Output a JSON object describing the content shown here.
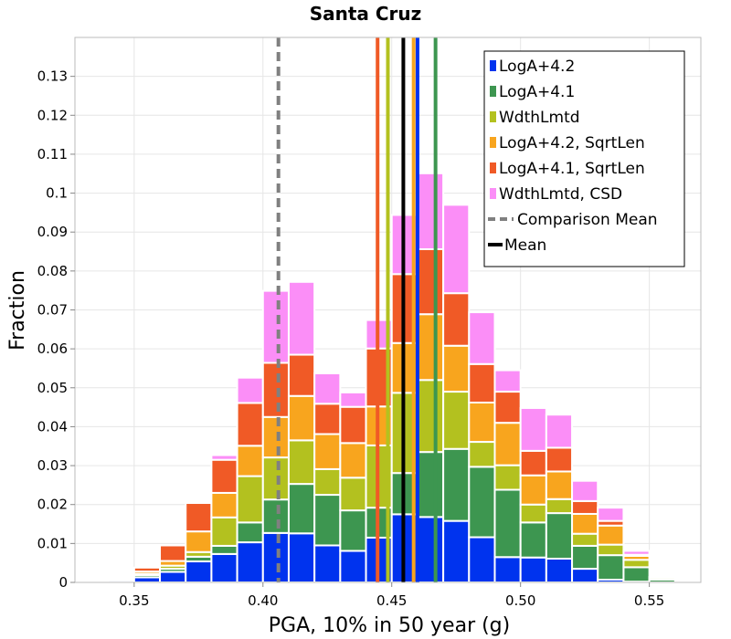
{
  "chart_data": {
    "type": "bar",
    "stacked": true,
    "title": "Santa Cruz",
    "xlabel": "PGA, 10% in 50 year (g)",
    "ylabel": "Fraction",
    "xlim": [
      0.327,
      0.57
    ],
    "ylim": [
      0,
      0.14
    ],
    "xticks": [
      0.35,
      0.4,
      0.45,
      0.5,
      0.55
    ],
    "xtick_labels": [
      "0.35",
      "0.40",
      "0.45",
      "0.50",
      "0.55"
    ],
    "yticks": [
      0,
      0.01,
      0.02,
      0.03,
      0.04,
      0.05,
      0.06,
      0.07,
      0.08,
      0.09,
      0.1,
      0.11,
      0.12,
      0.13
    ],
    "ytick_labels": [
      "0",
      "0.01",
      "0.02",
      "0.03",
      "0.04",
      "0.05",
      "0.06",
      "0.07",
      "0.08",
      "0.09",
      "0.1",
      "0.11",
      "0.12",
      "0.13"
    ],
    "grid": true,
    "legend_position": "top-right",
    "bin_width": 0.01,
    "bin_centers": [
      0.335,
      0.345,
      0.355,
      0.365,
      0.375,
      0.385,
      0.395,
      0.405,
      0.415,
      0.425,
      0.435,
      0.445,
      0.455,
      0.465,
      0.475,
      0.485,
      0.495,
      0.505,
      0.515,
      0.525,
      0.535,
      0.545,
      0.555,
      0.565
    ],
    "series": [
      {
        "name": "LogA+4.2",
        "color": "#0033ee",
        "values": [
          0,
          0.0005,
          0.0013,
          0.0027,
          0.0054,
          0.0073,
          0.0103,
          0.0127,
          0.0126,
          0.0095,
          0.0081,
          0.0115,
          0.0175,
          0.0168,
          0.0158,
          0.0116,
          0.0065,
          0.0064,
          0.0061,
          0.0035,
          0.0007,
          0.0002,
          0,
          0
        ]
      },
      {
        "name": "LogA+4.1",
        "color": "#3d9650",
        "values": [
          0,
          0.0002,
          0.0006,
          0.0008,
          0.0012,
          0.0021,
          0.0051,
          0.0086,
          0.0127,
          0.013,
          0.0104,
          0.0077,
          0.0106,
          0.0167,
          0.0185,
          0.0181,
          0.0173,
          0.009,
          0.0117,
          0.0059,
          0.0063,
          0.0037,
          0.0007,
          0
        ]
      },
      {
        "name": "WdthLmtd",
        "color": "#b3c11f",
        "values": [
          0,
          0,
          0.0003,
          0.0008,
          0.0012,
          0.0073,
          0.0119,
          0.0108,
          0.0112,
          0.0066,
          0.0084,
          0.016,
          0.0206,
          0.0185,
          0.0147,
          0.0064,
          0.0063,
          0.0046,
          0.0036,
          0.0031,
          0.0027,
          0.0019,
          0.0005,
          0
        ]
      },
      {
        "name": "LogA+4.2, SqrtLen",
        "color": "#f8a51e",
        "values": [
          0,
          0.0001,
          0.0006,
          0.0012,
          0.0053,
          0.0063,
          0.0078,
          0.0104,
          0.0114,
          0.009,
          0.0089,
          0.01,
          0.0128,
          0.0169,
          0.0118,
          0.0101,
          0.0109,
          0.0075,
          0.0071,
          0.0051,
          0.0049,
          0.001,
          0.0001,
          0
        ]
      },
      {
        "name": "LogA+4.1, SqrtLen",
        "color": "#f05a26",
        "values": [
          0,
          0.0003,
          0.001,
          0.004,
          0.0073,
          0.0085,
          0.011,
          0.0139,
          0.0106,
          0.0078,
          0.0093,
          0.0149,
          0.0177,
          0.0167,
          0.0135,
          0.0099,
          0.008,
          0.0063,
          0.0061,
          0.0033,
          0.0012,
          0.0003,
          0.0001,
          0
        ]
      },
      {
        "name": "WdthLmtd, CSD",
        "color": "#fb8ef7",
        "values": [
          0,
          0,
          0,
          0,
          0.0002,
          0.0012,
          0.0065,
          0.0185,
          0.0187,
          0.0078,
          0.0037,
          0.0073,
          0.0152,
          0.0195,
          0.0227,
          0.0133,
          0.0055,
          0.011,
          0.0085,
          0.0052,
          0.0034,
          0.001,
          0,
          0
        ]
      }
    ],
    "reference_lines": [
      {
        "name": "Comparison Mean",
        "x": 0.406,
        "style": "dashed",
        "color": "#808080"
      },
      {
        "name": "Mean",
        "x": 0.4545,
        "style": "solid",
        "color": "#000000"
      }
    ],
    "series_mean_lines": [
      {
        "series": "LogA+4.1, SqrtLen",
        "x": 0.4445,
        "color": "#f05a26"
      },
      {
        "series": "WdthLmtd",
        "color": "#b3c11f",
        "x": 0.4485
      },
      {
        "series": "LogA+4.2, SqrtLen",
        "color": "#f8a51e",
        "x": 0.4585
      },
      {
        "series": "LogA+4.2",
        "color": "#0033ee",
        "x": 0.46
      },
      {
        "series": "LogA+4.1",
        "color": "#3d9650",
        "x": 0.467
      }
    ],
    "legend": [
      {
        "label": "LogA+4.2",
        "kind": "box",
        "color": "#0033ee"
      },
      {
        "label": "LogA+4.1",
        "kind": "box",
        "color": "#3d9650"
      },
      {
        "label": "WdthLmtd",
        "kind": "box",
        "color": "#b3c11f"
      },
      {
        "label": "LogA+4.2, SqrtLen",
        "kind": "box",
        "color": "#f8a51e"
      },
      {
        "label": "LogA+4.1, SqrtLen",
        "kind": "box",
        "color": "#f05a26"
      },
      {
        "label": "WdthLmtd, CSD",
        "kind": "box",
        "color": "#fb8ef7"
      },
      {
        "label": "Comparison Mean",
        "kind": "dash",
        "color": "#808080"
      },
      {
        "label": "Mean",
        "kind": "line",
        "color": "#000000"
      }
    ]
  }
}
